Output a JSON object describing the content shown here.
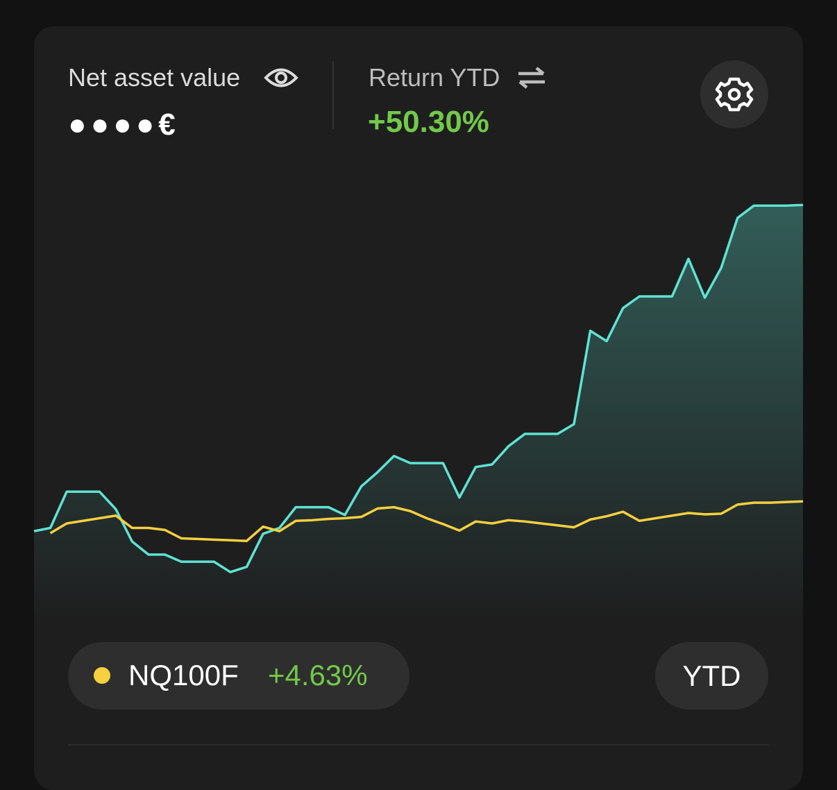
{
  "header": {
    "nav_label": "Net asset value",
    "nav_hidden": "●●●●€",
    "return_label": "Return YTD",
    "return_value": "+50.30%"
  },
  "chart_data": {
    "type": "line",
    "ylim": [
      -14,
      56
    ],
    "series": [
      {
        "color": "#5ee3d3",
        "values": [
          0,
          0.5,
          6.1,
          6.1,
          6.1,
          3.4,
          -1.6,
          -3.6,
          -3.6,
          -4.7,
          -4.7,
          -4.7,
          -6.3,
          -5.5,
          -0.4,
          0.5,
          3.7,
          3.7,
          3.7,
          2.5,
          6.9,
          9.1,
          11.6,
          10.5,
          10.5,
          10.5,
          5.2,
          9.9,
          10.3,
          13.1,
          15.0,
          15.0,
          15.0,
          16.5,
          30.9,
          29.3,
          34.4,
          36.2,
          36.2,
          36.2,
          42.0,
          36.0,
          40.6,
          48.3,
          50.2,
          50.2,
          50.2,
          50.3
        ]
      },
      {
        "name": "NQ100F",
        "change": "+4.63%",
        "color": "#f6d03f",
        "values": [
          null,
          -0.3,
          1.2,
          1.6,
          2.0,
          2.4,
          0.5,
          0.5,
          0.2,
          -1.1,
          -1.2,
          -1.3,
          -1.4,
          -1.5,
          0.7,
          0,
          1.6,
          1.7,
          1.9,
          2.0,
          2.2,
          3.5,
          3.7,
          3.1,
          2.0,
          1.1,
          0.1,
          1.5,
          1.2,
          1.7,
          1.5,
          1.2,
          0.9,
          0.6,
          1.8,
          2.3,
          3.0,
          1.6,
          2.0,
          2.4,
          2.8,
          2.6,
          2.7,
          4.1,
          4.4,
          4.4,
          4.5,
          4.6
        ]
      }
    ]
  },
  "period_button": "YTD"
}
